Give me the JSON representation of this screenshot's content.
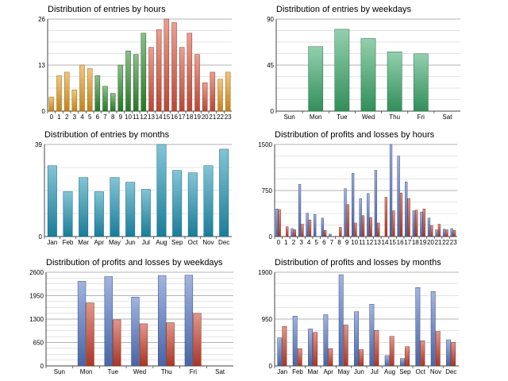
{
  "colors": {
    "hour_orange": "#e69a1c",
    "hour_green": "#2e8b2e",
    "hour_red": "#d9533d",
    "weekday_green": "#3aa869",
    "month_teal": "#1e93b4",
    "profit_blue": "#5577c4",
    "loss_red": "#c8402a",
    "grid": "#9a9a9a"
  },
  "chart_data": [
    {
      "id": "hours",
      "type": "bar",
      "title": "Distribution of entries by hours",
      "categories": [
        "0",
        "1",
        "2",
        "3",
        "4",
        "5",
        "6",
        "7",
        "8",
        "9",
        "10",
        "11",
        "12",
        "13",
        "14",
        "15",
        "16",
        "17",
        "18",
        "19",
        "20",
        "21",
        "22",
        "23"
      ],
      "values": [
        4,
        10,
        11,
        6,
        13,
        12,
        10,
        7,
        5,
        13,
        17,
        16,
        22,
        18,
        23,
        26,
        25,
        18,
        22,
        16,
        8,
        11,
        9,
        11
      ],
      "yticks": [
        0,
        13,
        26
      ],
      "ylim": [
        0,
        26
      ],
      "grid": true
    },
    {
      "id": "weekdays",
      "type": "bar",
      "title": "Distribution of entries by weekdays",
      "categories": [
        "Sun",
        "Mon",
        "Tue",
        "Wed",
        "Thu",
        "Fri",
        "Sat"
      ],
      "values": [
        0,
        63,
        80,
        71,
        58,
        56,
        0
      ],
      "yticks": [
        0,
        45,
        90
      ],
      "ylim": [
        0,
        90
      ],
      "grid": true
    },
    {
      "id": "months",
      "type": "bar",
      "title": "Distribution of entries by months",
      "categories": [
        "Jan",
        "Feb",
        "Mar",
        "Apr",
        "May",
        "Jun",
        "Jul",
        "Aug",
        "Sep",
        "Oct",
        "Nov",
        "Dec"
      ],
      "values": [
        30,
        19,
        25,
        19,
        25,
        23,
        20,
        39,
        28,
        27,
        30,
        37
      ],
      "yticks": [
        0,
        39
      ],
      "ylim": [
        0,
        39
      ],
      "grid": true
    },
    {
      "id": "pl-hours",
      "type": "bar",
      "title": "Distribution of profits and losses by hours",
      "categories": [
        "0",
        "1",
        "2",
        "3",
        "4",
        "5",
        "6",
        "7",
        "8",
        "9",
        "10",
        "11",
        "12",
        "13",
        "14",
        "15",
        "16",
        "17",
        "18",
        "19",
        "20",
        "21",
        "22",
        "23"
      ],
      "series": [
        {
          "values": [
            450,
            0,
            130,
            850,
            380,
            360,
            300,
            40,
            0,
            780,
            1030,
            620,
            700,
            1080,
            0,
            1500,
            1310,
            890,
            420,
            400,
            300,
            110,
            120,
            130
          ]
        },
        {
          "values": [
            440,
            160,
            110,
            200,
            270,
            0,
            100,
            0,
            150,
            520,
            220,
            340,
            310,
            220,
            640,
            420,
            710,
            620,
            430,
            450,
            180,
            200,
            110,
            100
          ]
        }
      ],
      "yticks": [
        0,
        750,
        1500
      ],
      "ylim": [
        0,
        1500
      ],
      "grid": true
    },
    {
      "id": "pl-weekdays",
      "type": "bar",
      "title": "Distribution of profits and losses by weekdays",
      "categories": [
        "Sun",
        "Mon",
        "Tue",
        "Wed",
        "Thu",
        "Fri",
        "Sat"
      ],
      "series": [
        {
          "values": [
            0,
            2350,
            2480,
            1910,
            2510,
            2520,
            0
          ]
        },
        {
          "values": [
            0,
            1750,
            1280,
            1170,
            1200,
            1460,
            0
          ]
        }
      ],
      "yticks": [
        0,
        650,
        1300,
        1950,
        2600
      ],
      "ylim": [
        0,
        2600
      ],
      "grid": true
    },
    {
      "id": "pl-months",
      "type": "bar",
      "title": "Distribution of profits and losses by months",
      "categories": [
        "Jan",
        "Feb",
        "Mar",
        "Apr",
        "May",
        "Jun",
        "Jul",
        "Aug",
        "Sep",
        "Oct",
        "Nov",
        "Dec"
      ],
      "series": [
        {
          "values": [
            570,
            1010,
            750,
            1040,
            1850,
            1100,
            1250,
            210,
            150,
            1590,
            1510,
            530
          ]
        },
        {
          "values": [
            800,
            350,
            680,
            350,
            830,
            330,
            720,
            600,
            390,
            510,
            700,
            480
          ]
        }
      ],
      "yticks": [
        0,
        950,
        1900
      ],
      "ylim": [
        0,
        1900
      ],
      "grid": true
    }
  ]
}
